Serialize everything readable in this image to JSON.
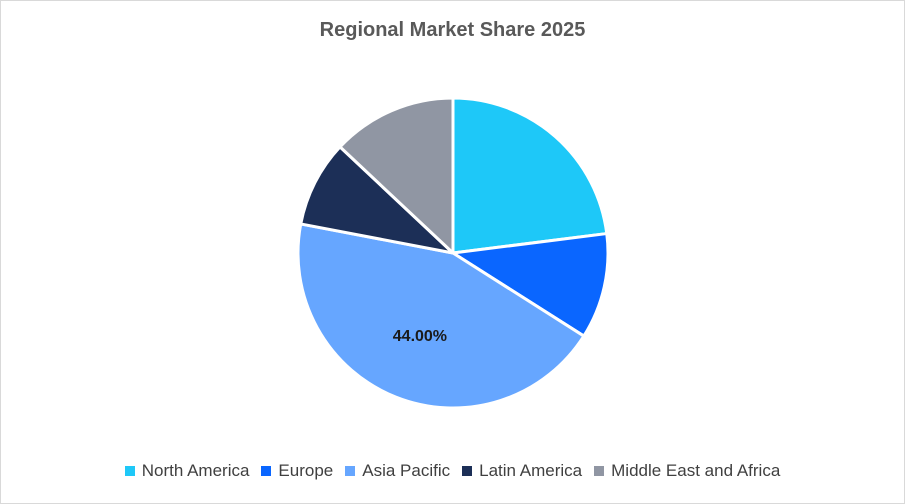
{
  "chart_data": {
    "type": "pie",
    "title": "Regional Market Share 2025",
    "categories": [
      "North America",
      "Europe",
      "Asia Pacific",
      "Latin America",
      "Middle East and Africa"
    ],
    "values": [
      23,
      11,
      44,
      9,
      13
    ],
    "colors": [
      "#1ec8f8",
      "#0a66ff",
      "#66a6ff",
      "#1c2f57",
      "#9096a3"
    ],
    "data_labels": [
      "",
      "",
      "44.00%",
      "",
      ""
    ],
    "legend_position": "bottom"
  }
}
